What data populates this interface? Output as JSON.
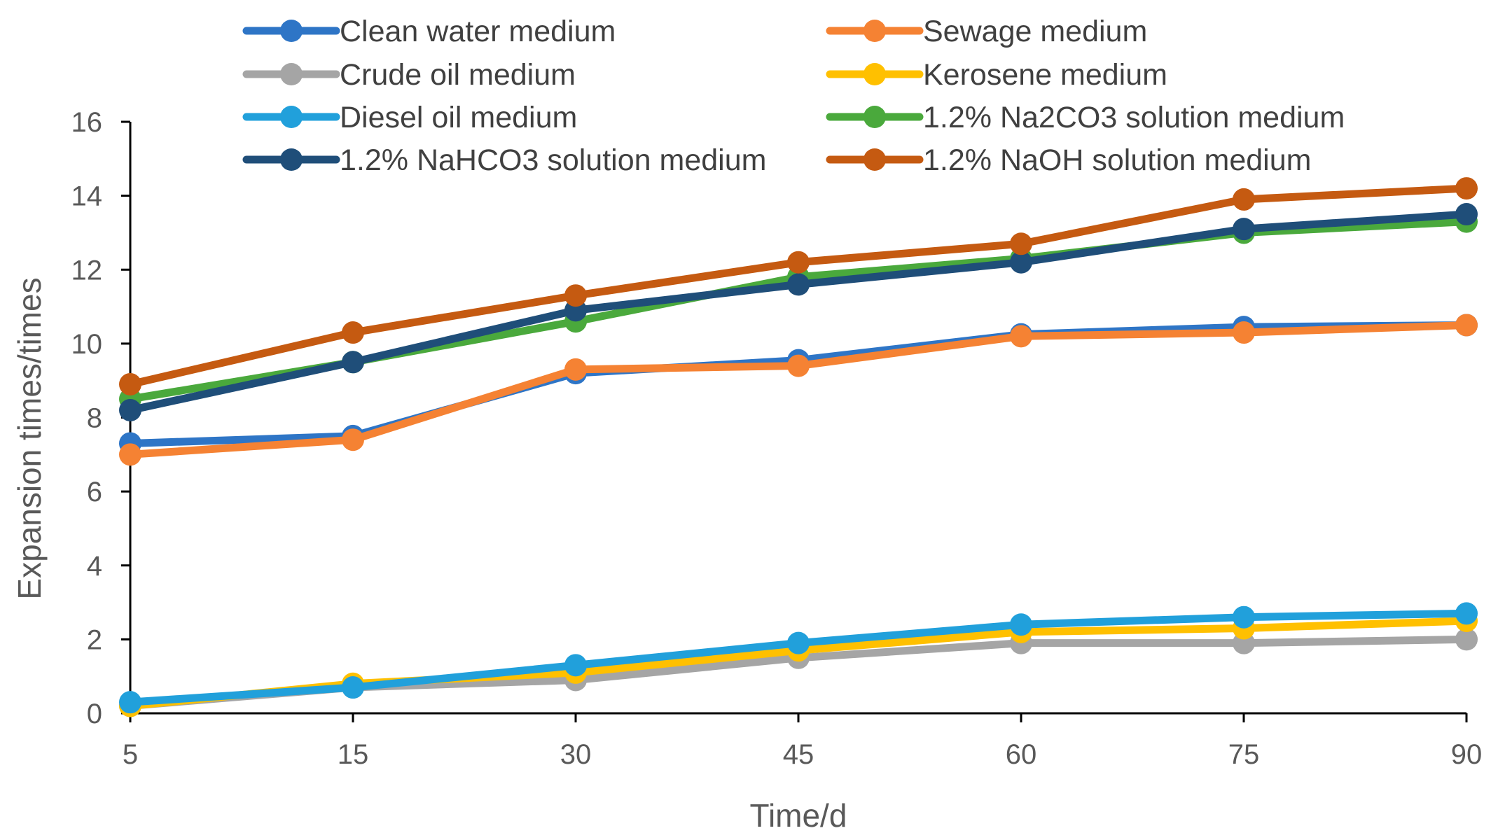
{
  "chart_data": {
    "type": "line",
    "title": "",
    "xlabel": "Time/d",
    "ylabel": "Expansion times/times",
    "x": [
      5,
      15,
      30,
      45,
      60,
      75,
      90
    ],
    "x_tick_labels": [
      "5",
      "15",
      "30",
      "45",
      "60",
      "75",
      "90"
    ],
    "ylim": [
      0,
      16
    ],
    "y_ticks": [
      0,
      2,
      4,
      6,
      8,
      10,
      12,
      14,
      16
    ],
    "y_tick_labels": [
      "0",
      "2",
      "4",
      "6",
      "8",
      "10",
      "12",
      "14",
      "16"
    ],
    "grid": false,
    "legend_position": "top",
    "series": [
      {
        "name": "Clean water medium",
        "color": "#2E75C6",
        "values": [
          7.3,
          7.5,
          9.2,
          9.55,
          10.25,
          10.45,
          10.5
        ]
      },
      {
        "name": "Sewage medium",
        "color": "#F58233",
        "values": [
          7.0,
          7.4,
          9.3,
          9.4,
          10.2,
          10.3,
          10.5
        ]
      },
      {
        "name": "Crude oil medium",
        "color": "#A5A5A5",
        "values": [
          0.2,
          0.7,
          0.9,
          1.5,
          1.9,
          1.9,
          2.0
        ]
      },
      {
        "name": "Kerosene medium",
        "color": "#FFC000",
        "values": [
          0.2,
          0.8,
          1.1,
          1.7,
          2.2,
          2.3,
          2.5
        ]
      },
      {
        "name": "Diesel oil medium",
        "color": "#21A0DB",
        "values": [
          0.3,
          0.7,
          1.3,
          1.9,
          2.4,
          2.6,
          2.7
        ]
      },
      {
        "name": "1.2% Na2CO3 solution medium",
        "color": "#4AA93C",
        "values": [
          8.5,
          9.5,
          10.6,
          11.8,
          12.3,
          13.0,
          13.3
        ]
      },
      {
        "name": "1.2% NaHCO3 solution medium",
        "color": "#1F4E79",
        "values": [
          8.2,
          9.5,
          10.9,
          11.6,
          12.2,
          13.1,
          13.5
        ]
      },
      {
        "name": "1.2% NaOH solution medium",
        "color": "#C55A11",
        "values": [
          8.9,
          10.3,
          11.3,
          12.2,
          12.7,
          13.9,
          14.2
        ]
      }
    ]
  }
}
